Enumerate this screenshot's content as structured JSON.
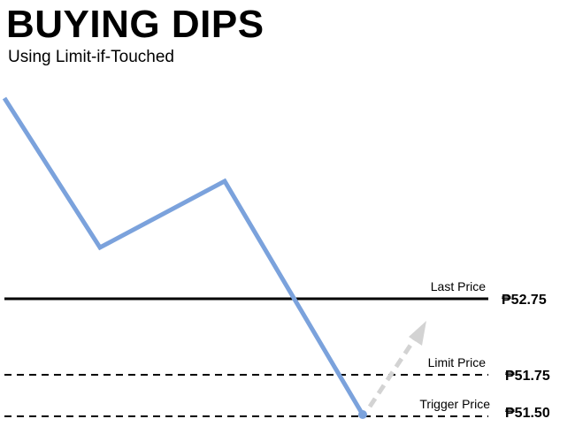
{
  "title": "BUYING DIPS",
  "subtitle": "Using Limit-if-Touched",
  "levels": {
    "last": {
      "label": "Last Price",
      "value": "₱52.75"
    },
    "limit": {
      "label": "Limit Price",
      "value": "₱51.75"
    },
    "trigger": {
      "label": "Trigger Price",
      "value": "₱51.50"
    }
  },
  "colors": {
    "price_path": "#7ba2dc",
    "arrow": "#d3d3d3",
    "lines": "#000000"
  }
}
